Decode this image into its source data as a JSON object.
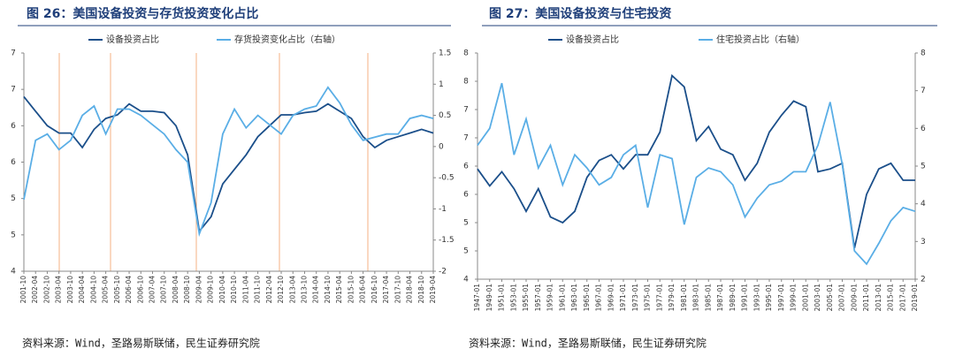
{
  "chart_data": [
    {
      "type": "line",
      "title": "图 26：美国设备投资与存货投资变化占比",
      "categories": [
        "2001-10",
        "2002-04",
        "2002-10",
        "2003-04",
        "2003-10",
        "2004-04",
        "2004-10",
        "2005-04",
        "2005-10",
        "2006-04",
        "2006-10",
        "2007-04",
        "2007-10",
        "2008-04",
        "2008-10",
        "2009-04",
        "2009-10",
        "2010-04",
        "2010-10",
        "2011-04",
        "2011-10",
        "2012-04",
        "2012-10",
        "2013-04",
        "2013-10",
        "2014-04",
        "2014-10",
        "2015-04",
        "2015-10",
        "2016-04",
        "2016-10",
        "2017-04",
        "2017-10",
        "2018-04",
        "2018-10",
        "2019-04"
      ],
      "series": [
        {
          "name": "设备投资占比",
          "color": "#1b4f8a",
          "axis": "y",
          "values": [
            6.4,
            6.2,
            6.0,
            5.9,
            5.9,
            5.7,
            5.95,
            6.1,
            6.15,
            6.3,
            6.2,
            6.2,
            6.18,
            6.0,
            5.6,
            4.55,
            4.75,
            5.2,
            5.4,
            5.6,
            5.85,
            6.0,
            6.15,
            6.15,
            6.18,
            6.2,
            6.3,
            6.2,
            6.1,
            5.85,
            5.7,
            5.8,
            5.85,
            5.9,
            5.95,
            5.9
          ]
        },
        {
          "name": "存货投资变化占比（右轴）",
          "color": "#5aaee6",
          "axis": "y2",
          "values": [
            -0.85,
            0.1,
            0.2,
            -0.05,
            0.1,
            0.5,
            0.65,
            0.2,
            0.6,
            0.6,
            0.5,
            0.35,
            0.2,
            -0.05,
            -0.25,
            -1.4,
            -0.9,
            0.2,
            0.6,
            0.3,
            0.5,
            0.35,
            0.2,
            0.5,
            0.6,
            0.65,
            0.95,
            0.7,
            0.35,
            0.1,
            0.15,
            0.2,
            0.2,
            0.45,
            0.5,
            0.45
          ]
        }
      ],
      "ylim": [
        4,
        7
      ],
      "yticks": [
        4,
        {
          "value": 4.5,
          "label": "5"
        },
        5,
        {
          "value": 5.5,
          "label": "6"
        },
        6,
        {
          "value": 6.5,
          "label": "7"
        },
        7
      ],
      "y2lim": [
        -2,
        1.5
      ],
      "y2ticks": [
        -2,
        -1.5,
        -1,
        -0.5,
        0,
        0.5,
        1,
        1.5
      ],
      "source": "资料来源：Wind，圣路易斯联储，民生证券研究院"
    },
    {
      "type": "line",
      "title": "图 27：美国设备投资与住宅投资",
      "categories": [
        "1947-01",
        "1949-01",
        "1951-01",
        "1953-01",
        "1955-01",
        "1957-01",
        "1959-01",
        "1961-01",
        "1963-01",
        "1965-01",
        "1967-01",
        "1969-01",
        "1971-01",
        "1973-01",
        "1975-01",
        "1977-01",
        "1979-01",
        "1981-01",
        "1983-01",
        "1985-01",
        "1987-01",
        "1989-01",
        "1991-01",
        "1993-01",
        "1995-01",
        "1997-01",
        "1999-01",
        "2001-01",
        "2003-01",
        "2005-01",
        "2007-01",
        "2009-01",
        "2011-01",
        "2013-01",
        "2015-01",
        "2017-01",
        "2019-01"
      ],
      "series": [
        {
          "name": "设备投资占比",
          "color": "#1b4f8a",
          "axis": "y",
          "values": [
            5.95,
            5.65,
            5.9,
            5.6,
            5.2,
            5.6,
            5.1,
            5.0,
            5.2,
            5.8,
            6.1,
            6.2,
            5.95,
            6.2,
            6.2,
            6.6,
            7.6,
            7.4,
            6.45,
            6.7,
            6.3,
            6.2,
            5.75,
            6.05,
            6.6,
            6.9,
            7.15,
            7.05,
            5.9,
            5.95,
            6.05,
            4.55,
            5.5,
            5.95,
            6.05,
            5.75,
            5.75
          ]
        },
        {
          "name": "住宅投资占比（右轴）",
          "color": "#5aaee6",
          "axis": "y2",
          "values": [
            5.55,
            6.0,
            7.2,
            5.3,
            6.25,
            4.95,
            5.55,
            4.5,
            5.3,
            4.95,
            4.5,
            4.7,
            5.3,
            5.55,
            3.9,
            5.3,
            5.2,
            3.45,
            4.7,
            4.95,
            4.85,
            4.5,
            3.65,
            4.15,
            4.5,
            4.6,
            4.85,
            4.85,
            5.55,
            6.7,
            5.05,
            2.75,
            2.4,
            2.95,
            3.55,
            3.9,
            3.8
          ]
        }
      ],
      "ylim": [
        4,
        8
      ],
      "yticks": [
        4,
        {
          "value": 4.5,
          "label": "5"
        },
        5,
        {
          "value": 5.5,
          "label": "6"
        },
        6,
        {
          "value": 6.5,
          "label": "7"
        },
        7,
        {
          "value": 7.5,
          "label": "8"
        },
        8
      ],
      "y2lim": [
        2,
        8
      ],
      "y2ticks": [
        2,
        3,
        4,
        5,
        6,
        7,
        8
      ],
      "source": "资料来源：Wind，圣路易斯联储，民生证券研究院"
    }
  ]
}
